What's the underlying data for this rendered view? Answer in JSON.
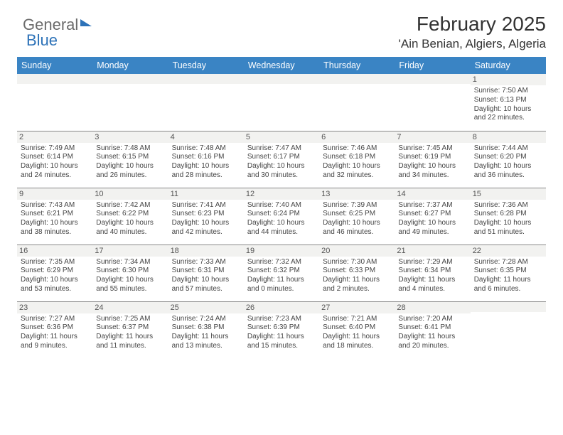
{
  "logo": {
    "word1": "General",
    "word2": "Blue"
  },
  "header": {
    "month_title": "February 2025",
    "location": "'Ain Benian, Algiers, Algeria"
  },
  "style": {
    "header_bg": "#3a84c4",
    "header_fg": "#ffffff",
    "daynum_bg": "#f2f2f0",
    "grid_line": "#888888",
    "body_text": "#444444",
    "title_fontsize": 28,
    "location_fontsize": 17,
    "weekday_fontsize": 12.5,
    "cell_fontsize": 10
  },
  "weekdays": [
    "Sunday",
    "Monday",
    "Tuesday",
    "Wednesday",
    "Thursday",
    "Friday",
    "Saturday"
  ],
  "rows": [
    [
      null,
      null,
      null,
      null,
      null,
      null,
      {
        "day": "1",
        "sunrise": "7:50 AM",
        "sunset": "6:13 PM",
        "daylight": "10 hours and 22 minutes."
      }
    ],
    [
      {
        "day": "2",
        "sunrise": "7:49 AM",
        "sunset": "6:14 PM",
        "daylight": "10 hours and 24 minutes."
      },
      {
        "day": "3",
        "sunrise": "7:48 AM",
        "sunset": "6:15 PM",
        "daylight": "10 hours and 26 minutes."
      },
      {
        "day": "4",
        "sunrise": "7:48 AM",
        "sunset": "6:16 PM",
        "daylight": "10 hours and 28 minutes."
      },
      {
        "day": "5",
        "sunrise": "7:47 AM",
        "sunset": "6:17 PM",
        "daylight": "10 hours and 30 minutes."
      },
      {
        "day": "6",
        "sunrise": "7:46 AM",
        "sunset": "6:18 PM",
        "daylight": "10 hours and 32 minutes."
      },
      {
        "day": "7",
        "sunrise": "7:45 AM",
        "sunset": "6:19 PM",
        "daylight": "10 hours and 34 minutes."
      },
      {
        "day": "8",
        "sunrise": "7:44 AM",
        "sunset": "6:20 PM",
        "daylight": "10 hours and 36 minutes."
      }
    ],
    [
      {
        "day": "9",
        "sunrise": "7:43 AM",
        "sunset": "6:21 PM",
        "daylight": "10 hours and 38 minutes."
      },
      {
        "day": "10",
        "sunrise": "7:42 AM",
        "sunset": "6:22 PM",
        "daylight": "10 hours and 40 minutes."
      },
      {
        "day": "11",
        "sunrise": "7:41 AM",
        "sunset": "6:23 PM",
        "daylight": "10 hours and 42 minutes."
      },
      {
        "day": "12",
        "sunrise": "7:40 AM",
        "sunset": "6:24 PM",
        "daylight": "10 hours and 44 minutes."
      },
      {
        "day": "13",
        "sunrise": "7:39 AM",
        "sunset": "6:25 PM",
        "daylight": "10 hours and 46 minutes."
      },
      {
        "day": "14",
        "sunrise": "7:37 AM",
        "sunset": "6:27 PM",
        "daylight": "10 hours and 49 minutes."
      },
      {
        "day": "15",
        "sunrise": "7:36 AM",
        "sunset": "6:28 PM",
        "daylight": "10 hours and 51 minutes."
      }
    ],
    [
      {
        "day": "16",
        "sunrise": "7:35 AM",
        "sunset": "6:29 PM",
        "daylight": "10 hours and 53 minutes."
      },
      {
        "day": "17",
        "sunrise": "7:34 AM",
        "sunset": "6:30 PM",
        "daylight": "10 hours and 55 minutes."
      },
      {
        "day": "18",
        "sunrise": "7:33 AM",
        "sunset": "6:31 PM",
        "daylight": "10 hours and 57 minutes."
      },
      {
        "day": "19",
        "sunrise": "7:32 AM",
        "sunset": "6:32 PM",
        "daylight": "11 hours and 0 minutes."
      },
      {
        "day": "20",
        "sunrise": "7:30 AM",
        "sunset": "6:33 PM",
        "daylight": "11 hours and 2 minutes."
      },
      {
        "day": "21",
        "sunrise": "7:29 AM",
        "sunset": "6:34 PM",
        "daylight": "11 hours and 4 minutes."
      },
      {
        "day": "22",
        "sunrise": "7:28 AM",
        "sunset": "6:35 PM",
        "daylight": "11 hours and 6 minutes."
      }
    ],
    [
      {
        "day": "23",
        "sunrise": "7:27 AM",
        "sunset": "6:36 PM",
        "daylight": "11 hours and 9 minutes."
      },
      {
        "day": "24",
        "sunrise": "7:25 AM",
        "sunset": "6:37 PM",
        "daylight": "11 hours and 11 minutes."
      },
      {
        "day": "25",
        "sunrise": "7:24 AM",
        "sunset": "6:38 PM",
        "daylight": "11 hours and 13 minutes."
      },
      {
        "day": "26",
        "sunrise": "7:23 AM",
        "sunset": "6:39 PM",
        "daylight": "11 hours and 15 minutes."
      },
      {
        "day": "27",
        "sunrise": "7:21 AM",
        "sunset": "6:40 PM",
        "daylight": "11 hours and 18 minutes."
      },
      {
        "day": "28",
        "sunrise": "7:20 AM",
        "sunset": "6:41 PM",
        "daylight": "11 hours and 20 minutes."
      },
      null
    ]
  ],
  "labels": {
    "sunrise": "Sunrise:",
    "sunset": "Sunset:",
    "daylight": "Daylight:"
  }
}
